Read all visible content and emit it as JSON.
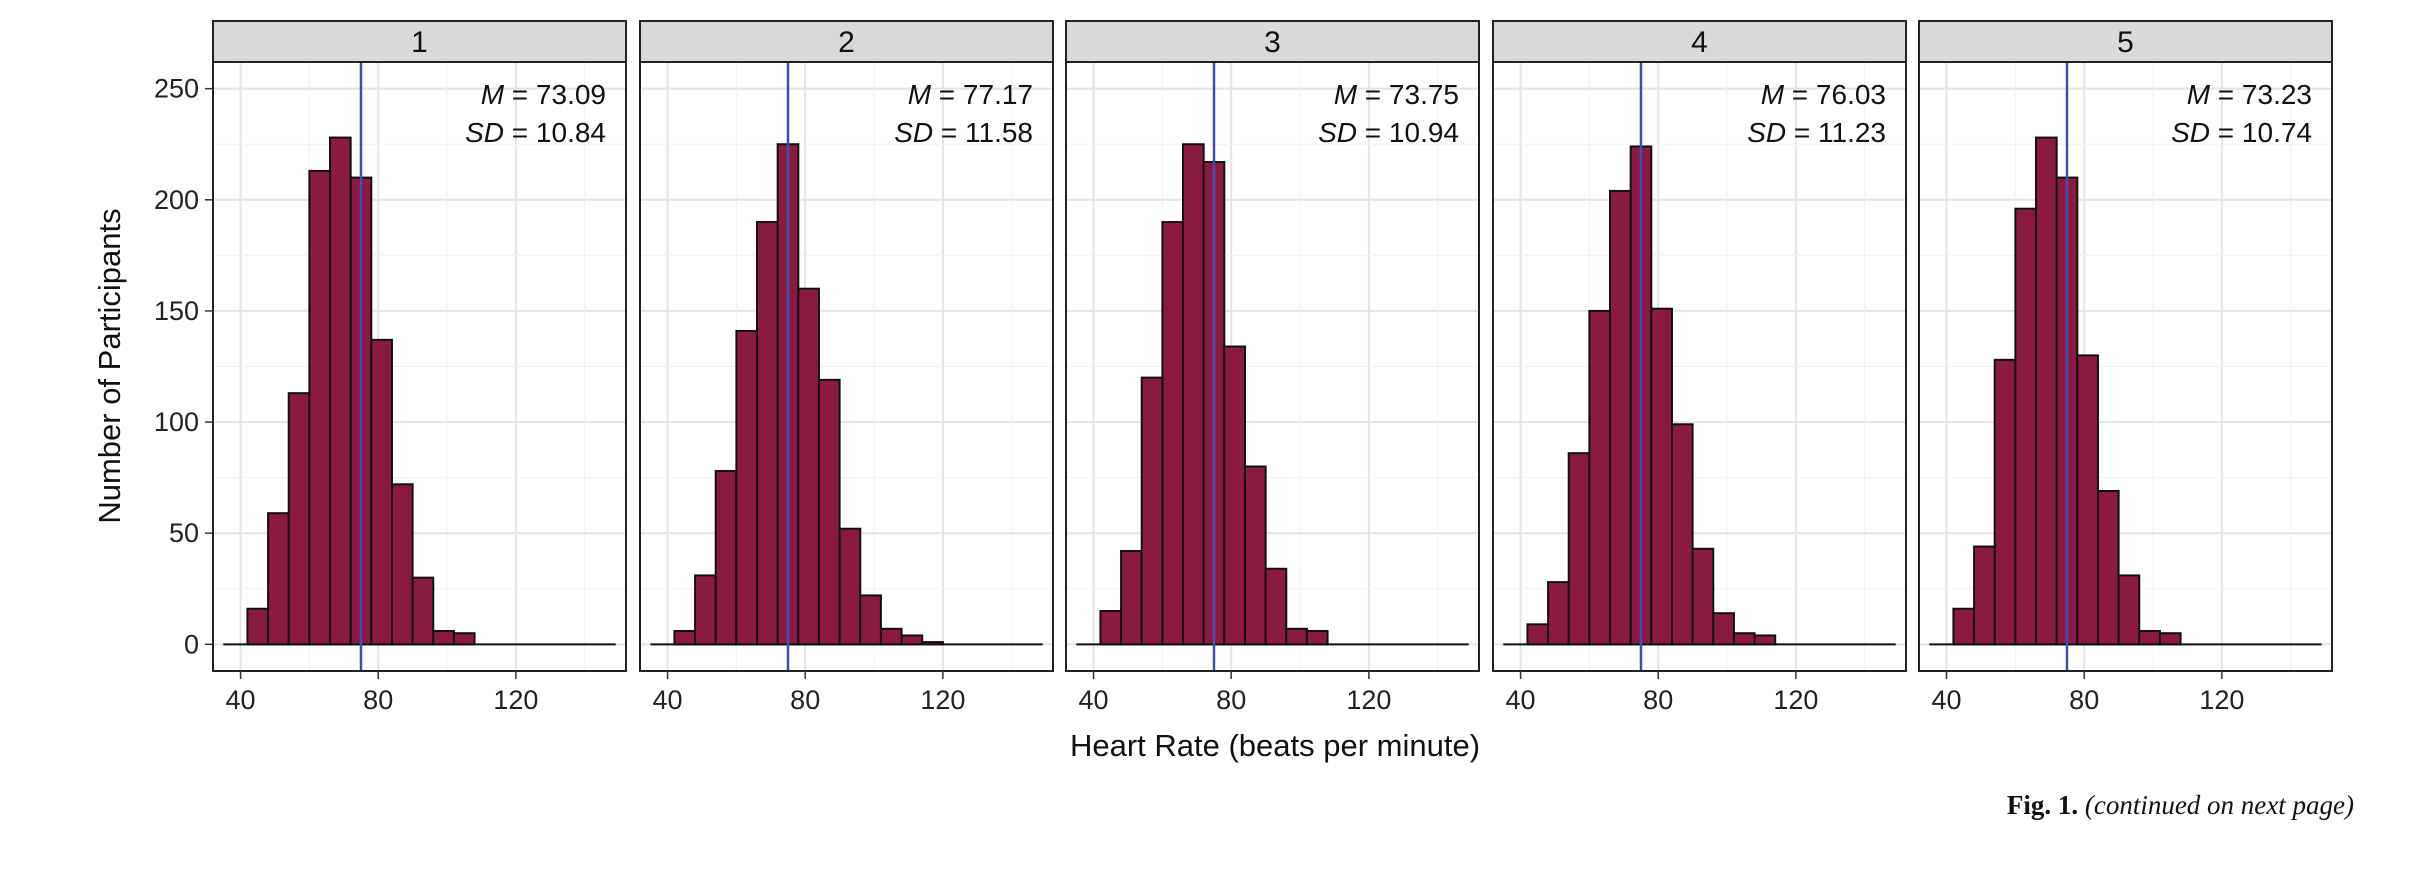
{
  "chart_data": {
    "type": "bar",
    "layout": "facets",
    "xlabel": "Heart Rate (beats per minute)",
    "ylabel": "Number of Participants",
    "xlim": [
      32,
      152
    ],
    "ylim": [
      -12,
      262
    ],
    "x_ticks": [
      40,
      80,
      120
    ],
    "y_ticks": [
      0,
      50,
      100,
      150,
      200,
      250
    ],
    "grid": true,
    "bin_width": 6,
    "bar_color": "#8b1a42",
    "mean_line_color": "#3a50b0",
    "panels": [
      {
        "label": "1",
        "mean_label": "M",
        "mean_value": "= 73.09",
        "sd_label": "SD",
        "sd_value": "= 10.84",
        "mean_line": 75,
        "bins": [
          {
            "x": 39,
            "count": 0
          },
          {
            "x": 45,
            "count": 16
          },
          {
            "x": 51,
            "count": 59
          },
          {
            "x": 57,
            "count": 113
          },
          {
            "x": 63,
            "count": 213
          },
          {
            "x": 69,
            "count": 228
          },
          {
            "x": 75,
            "count": 210
          },
          {
            "x": 81,
            "count": 137
          },
          {
            "x": 87,
            "count": 72
          },
          {
            "x": 93,
            "count": 30
          },
          {
            "x": 99,
            "count": 6
          },
          {
            "x": 105,
            "count": 5
          }
        ]
      },
      {
        "label": "2",
        "mean_label": "M",
        "mean_value": "= 77.17",
        "sd_label": "SD",
        "sd_value": "= 11.58",
        "mean_line": 75,
        "bins": [
          {
            "x": 45,
            "count": 6
          },
          {
            "x": 51,
            "count": 31
          },
          {
            "x": 57,
            "count": 78
          },
          {
            "x": 63,
            "count": 141
          },
          {
            "x": 69,
            "count": 190
          },
          {
            "x": 75,
            "count": 225
          },
          {
            "x": 81,
            "count": 160
          },
          {
            "x": 87,
            "count": 119
          },
          {
            "x": 93,
            "count": 52
          },
          {
            "x": 99,
            "count": 22
          },
          {
            "x": 105,
            "count": 7
          },
          {
            "x": 111,
            "count": 4
          },
          {
            "x": 117,
            "count": 1
          }
        ]
      },
      {
        "label": "3",
        "mean_label": "M",
        "mean_value": "= 73.75",
        "sd_label": "SD",
        "sd_value": "= 10.94",
        "mean_line": 75,
        "bins": [
          {
            "x": 45,
            "count": 15
          },
          {
            "x": 51,
            "count": 42
          },
          {
            "x": 57,
            "count": 120
          },
          {
            "x": 63,
            "count": 190
          },
          {
            "x": 69,
            "count": 225
          },
          {
            "x": 75,
            "count": 217
          },
          {
            "x": 81,
            "count": 134
          },
          {
            "x": 87,
            "count": 80
          },
          {
            "x": 93,
            "count": 34
          },
          {
            "x": 99,
            "count": 7
          },
          {
            "x": 105,
            "count": 6
          }
        ]
      },
      {
        "label": "4",
        "mean_label": "M",
        "mean_value": "= 76.03",
        "sd_label": "SD",
        "sd_value": "= 11.23",
        "mean_line": 75,
        "bins": [
          {
            "x": 39,
            "count": 0
          },
          {
            "x": 45,
            "count": 9
          },
          {
            "x": 51,
            "count": 28
          },
          {
            "x": 57,
            "count": 86
          },
          {
            "x": 63,
            "count": 150
          },
          {
            "x": 69,
            "count": 204
          },
          {
            "x": 75,
            "count": 224
          },
          {
            "x": 81,
            "count": 151
          },
          {
            "x": 87,
            "count": 99
          },
          {
            "x": 93,
            "count": 43
          },
          {
            "x": 99,
            "count": 14
          },
          {
            "x": 105,
            "count": 5
          },
          {
            "x": 111,
            "count": 4
          }
        ]
      },
      {
        "label": "5",
        "mean_label": "M",
        "mean_value": "= 73.23",
        "sd_label": "SD",
        "sd_value": "= 10.74",
        "mean_line": 75,
        "bins": [
          {
            "x": 45,
            "count": 16
          },
          {
            "x": 51,
            "count": 44
          },
          {
            "x": 57,
            "count": 128
          },
          {
            "x": 63,
            "count": 196
          },
          {
            "x": 69,
            "count": 228
          },
          {
            "x": 75,
            "count": 210
          },
          {
            "x": 81,
            "count": 130
          },
          {
            "x": 87,
            "count": 69
          },
          {
            "x": 93,
            "count": 31
          },
          {
            "x": 99,
            "count": 6
          },
          {
            "x": 105,
            "count": 5
          }
        ]
      }
    ]
  },
  "caption": {
    "label": "Fig. 1.",
    "text": "(continued on next page)"
  }
}
